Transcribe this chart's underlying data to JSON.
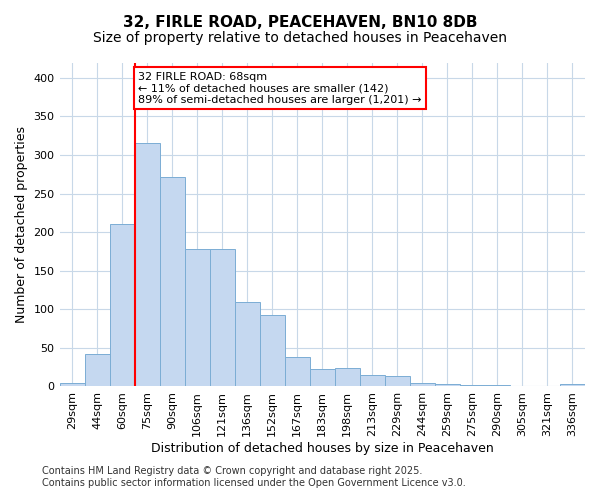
{
  "title": "32, FIRLE ROAD, PEACEHAVEN, BN10 8DB",
  "subtitle": "Size of property relative to detached houses in Peacehaven",
  "xlabel": "Distribution of detached houses by size in Peacehaven",
  "ylabel": "Number of detached properties",
  "categories": [
    "29sqm",
    "44sqm",
    "60sqm",
    "75sqm",
    "90sqm",
    "106sqm",
    "121sqm",
    "136sqm",
    "152sqm",
    "167sqm",
    "183sqm",
    "198sqm",
    "213sqm",
    "229sqm",
    "244sqm",
    "259sqm",
    "275sqm",
    "290sqm",
    "305sqm",
    "321sqm",
    "336sqm"
  ],
  "values": [
    5,
    42,
    210,
    315,
    272,
    178,
    178,
    110,
    92,
    38,
    22,
    24,
    15,
    13,
    5,
    3,
    2,
    2,
    1,
    0,
    3
  ],
  "bar_color": "#c5d8f0",
  "bar_edge_color": "#7badd4",
  "vline_index": 3,
  "vline_color": "red",
  "annotation_text": "32 FIRLE ROAD: 68sqm\n← 11% of detached houses are smaller (142)\n89% of semi-detached houses are larger (1,201) →",
  "annotation_box_color": "white",
  "annotation_box_edge": "red",
  "footnote_line1": "Contains HM Land Registry data © Crown copyright and database right 2025.",
  "footnote_line2": "Contains public sector information licensed under the Open Government Licence v3.0.",
  "ylim": [
    0,
    420
  ],
  "yticks": [
    0,
    50,
    100,
    150,
    200,
    250,
    300,
    350,
    400
  ],
  "bg_color": "white",
  "plot_bg_color": "white",
  "grid_color": "#c8d8e8",
  "title_fontsize": 11,
  "subtitle_fontsize": 10,
  "xlabel_fontsize": 9,
  "ylabel_fontsize": 9,
  "tick_fontsize": 8,
  "annotation_fontsize": 8,
  "footnote_fontsize": 7
}
